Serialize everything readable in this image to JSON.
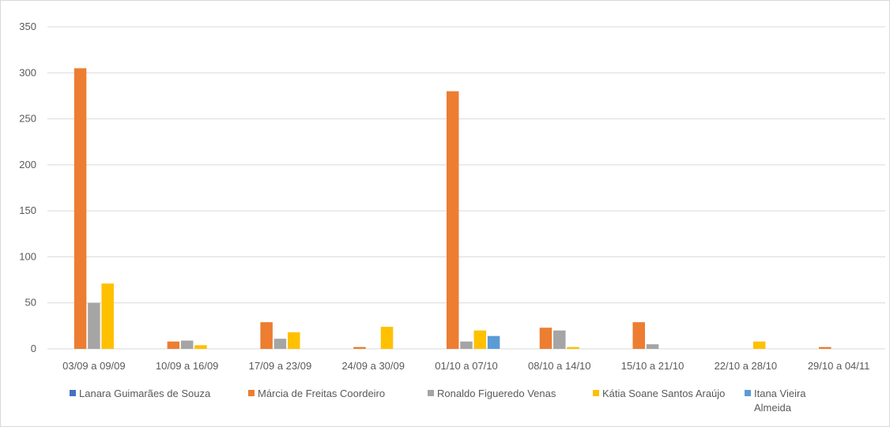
{
  "chart_data": {
    "type": "bar",
    "title": "",
    "xlabel": "",
    "ylabel": "",
    "ylim": [
      0,
      350
    ],
    "yticks": [
      0,
      50,
      100,
      150,
      200,
      250,
      300,
      350
    ],
    "grid": true,
    "legend_position": "bottom",
    "categories": [
      "03/09 a 09/09",
      "10/09 a 16/09",
      "17/09 a 23/09",
      "24/09 a 30/09",
      "01/10 a 07/10",
      "08/10 a 14/10",
      "15/10 a 21/10",
      "22/10 a 28/10",
      "29/10 a 04/11"
    ],
    "series": [
      {
        "name": "Lanara Guimarães de Souza",
        "color": "#4472c4",
        "values": [
          0,
          0,
          0,
          0,
          0,
          0,
          0,
          0,
          0
        ]
      },
      {
        "name": "Márcia de Freitas Coordeiro",
        "color": "#ed7d31",
        "values": [
          305,
          8,
          29,
          2,
          280,
          23,
          29,
          0,
          2
        ]
      },
      {
        "name": "Ronaldo Figueredo Venas",
        "color": "#a5a5a5",
        "values": [
          50,
          9,
          11,
          0,
          8,
          20,
          5,
          0,
          0
        ]
      },
      {
        "name": "Kátia Soane Santos Araújo",
        "color": "#ffc000",
        "values": [
          71,
          4,
          18,
          24,
          20,
          2,
          0,
          8,
          0
        ]
      },
      {
        "name": "Itana Vieira Almeida",
        "color": "#5b9bd5",
        "values": [
          0,
          0,
          0,
          0,
          14,
          0,
          0,
          0,
          0
        ]
      }
    ]
  }
}
